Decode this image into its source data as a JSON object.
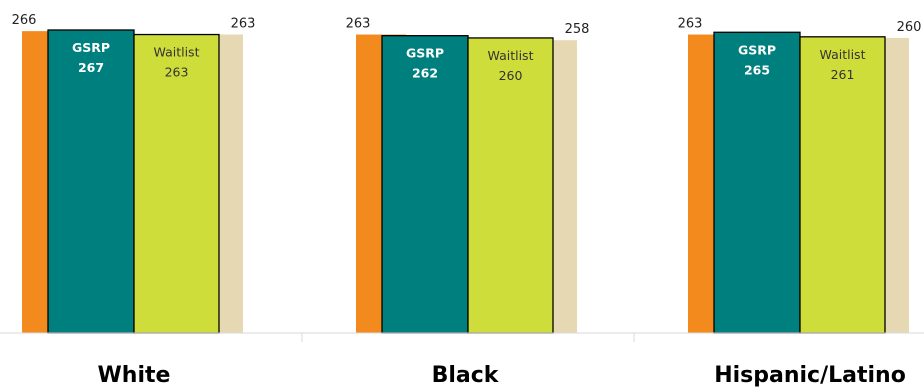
{
  "chart_data": {
    "type": "bar",
    "categories": [
      "White",
      "Black",
      "Hispanic/Latino"
    ],
    "series": [
      {
        "values": [
          266,
          263,
          263
        ],
        "color": "#f28a1e"
      },
      {
        "name": "GSRP",
        "values": [
          267,
          262,
          265
        ],
        "color": "#007f7f"
      },
      {
        "name": "Waitlist",
        "values": [
          263,
          260,
          261
        ],
        "color": "#cfdd3a"
      },
      {
        "values": [
          263,
          258,
          260
        ],
        "color": "#e6d8b3"
      }
    ],
    "inner_labels": {
      "series_1": "GSRP",
      "series_2": "Waitlist"
    },
    "grid": false
  }
}
